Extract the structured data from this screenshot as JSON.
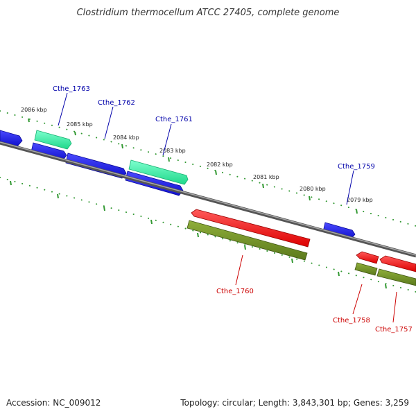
{
  "title": "Clostridium thermocellum ATCC 27405, complete genome",
  "footer": {
    "accession": "Accession: NC_009012",
    "summary": "Topology: circular; Length: 3,843,301 bp; Genes: 3,259"
  },
  "scale_ticks": [
    "2086 kbp",
    "2085 kbp",
    "2084 kbp",
    "2083 kbp",
    "2082 kbp",
    "2081 kbp",
    "2080 kbp",
    "2079 kbp"
  ],
  "gene_labels": [
    "Cthe_1763",
    "Cthe_1762",
    "Cthe_1761",
    "Cthe_1759",
    "Cthe_1760",
    "Cthe_1758",
    "Cthe_1757"
  ],
  "colors": {
    "forward_gene": "#1a1aee",
    "forward_cds": "#33ee99",
    "reverse_gene": "#ee1111",
    "reverse_cds": "#6b8e23",
    "backbone": "#808080",
    "forward_label": "#0000aa",
    "reverse_label": "#cc0000",
    "tick": "#339933"
  }
}
